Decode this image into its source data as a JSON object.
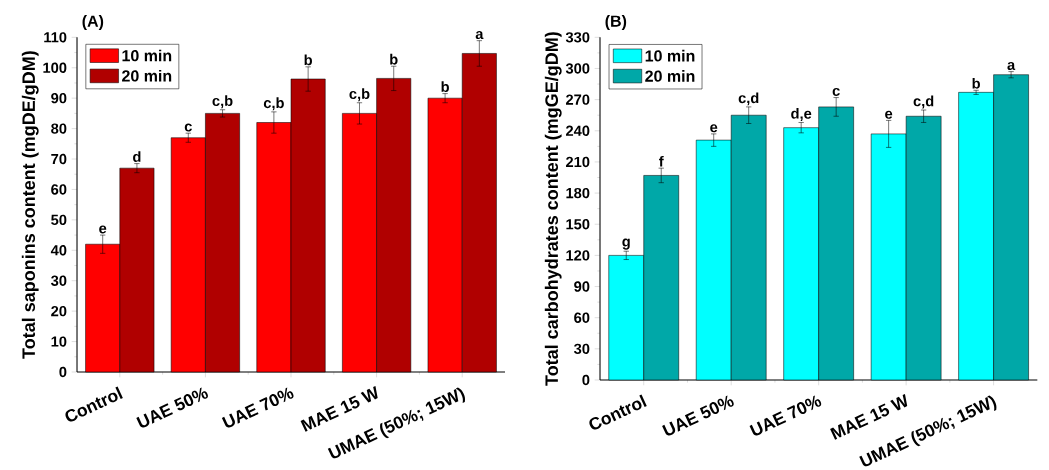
{
  "chart_data": [
    {
      "type": "bar",
      "title": "(A)",
      "ylabel": "Total saponins content (mgDE/gDM)",
      "categories": [
        "Control",
        "UAE 50%",
        "UAE 70%",
        "MAE 15 W",
        "UMAE (50%; 15W)"
      ],
      "series": [
        {
          "name": "10 min",
          "color": "#ff0000",
          "values": [
            42,
            77,
            82,
            85,
            90
          ],
          "errors": [
            3,
            1.5,
            3.5,
            3.5,
            1.5
          ],
          "value_labels": [
            "e",
            "c",
            "c,b",
            "c,b",
            "b"
          ]
        },
        {
          "name": "20 min",
          "color": "#b00000",
          "values": [
            67,
            85,
            96.3,
            96.5,
            104.7
          ],
          "errors": [
            1.5,
            1.2,
            4,
            4,
            4.2
          ],
          "value_labels": [
            "d",
            "c,b",
            "b",
            "b",
            "a"
          ]
        }
      ],
      "ylim": [
        0,
        110
      ],
      "yticks": [
        0,
        10,
        20,
        30,
        40,
        50,
        60,
        70,
        80,
        90,
        100,
        110
      ],
      "legend": "top left",
      "grid": false
    },
    {
      "type": "bar",
      "title": "(B)",
      "ylabel": "Total carbohydrates content (mgGE/gDM)",
      "categories": [
        "Control",
        "UAE 50%",
        "UAE 70%",
        "MAE 15 W",
        "UMAE (50%; 15W)"
      ],
      "series": [
        {
          "name": "10 min",
          "color": "#00ffff",
          "values": [
            120,
            231,
            243,
            237,
            277
          ],
          "errors": [
            4,
            6,
            5,
            13,
            2
          ],
          "value_labels": [
            "g",
            "e",
            "d,e",
            "e",
            "b"
          ]
        },
        {
          "name": "20 min",
          "color": "#00a8a8",
          "values": [
            197,
            255,
            263,
            254,
            294
          ],
          "errors": [
            7,
            8,
            9,
            6,
            3
          ],
          "value_labels": [
            "f",
            "c,d",
            "c",
            "c,d",
            "a"
          ]
        }
      ],
      "ylim": [
        0,
        330
      ],
      "yticks": [
        0,
        30,
        60,
        90,
        120,
        150,
        180,
        210,
        240,
        270,
        300,
        330
      ],
      "legend": "top left",
      "grid": false
    }
  ]
}
